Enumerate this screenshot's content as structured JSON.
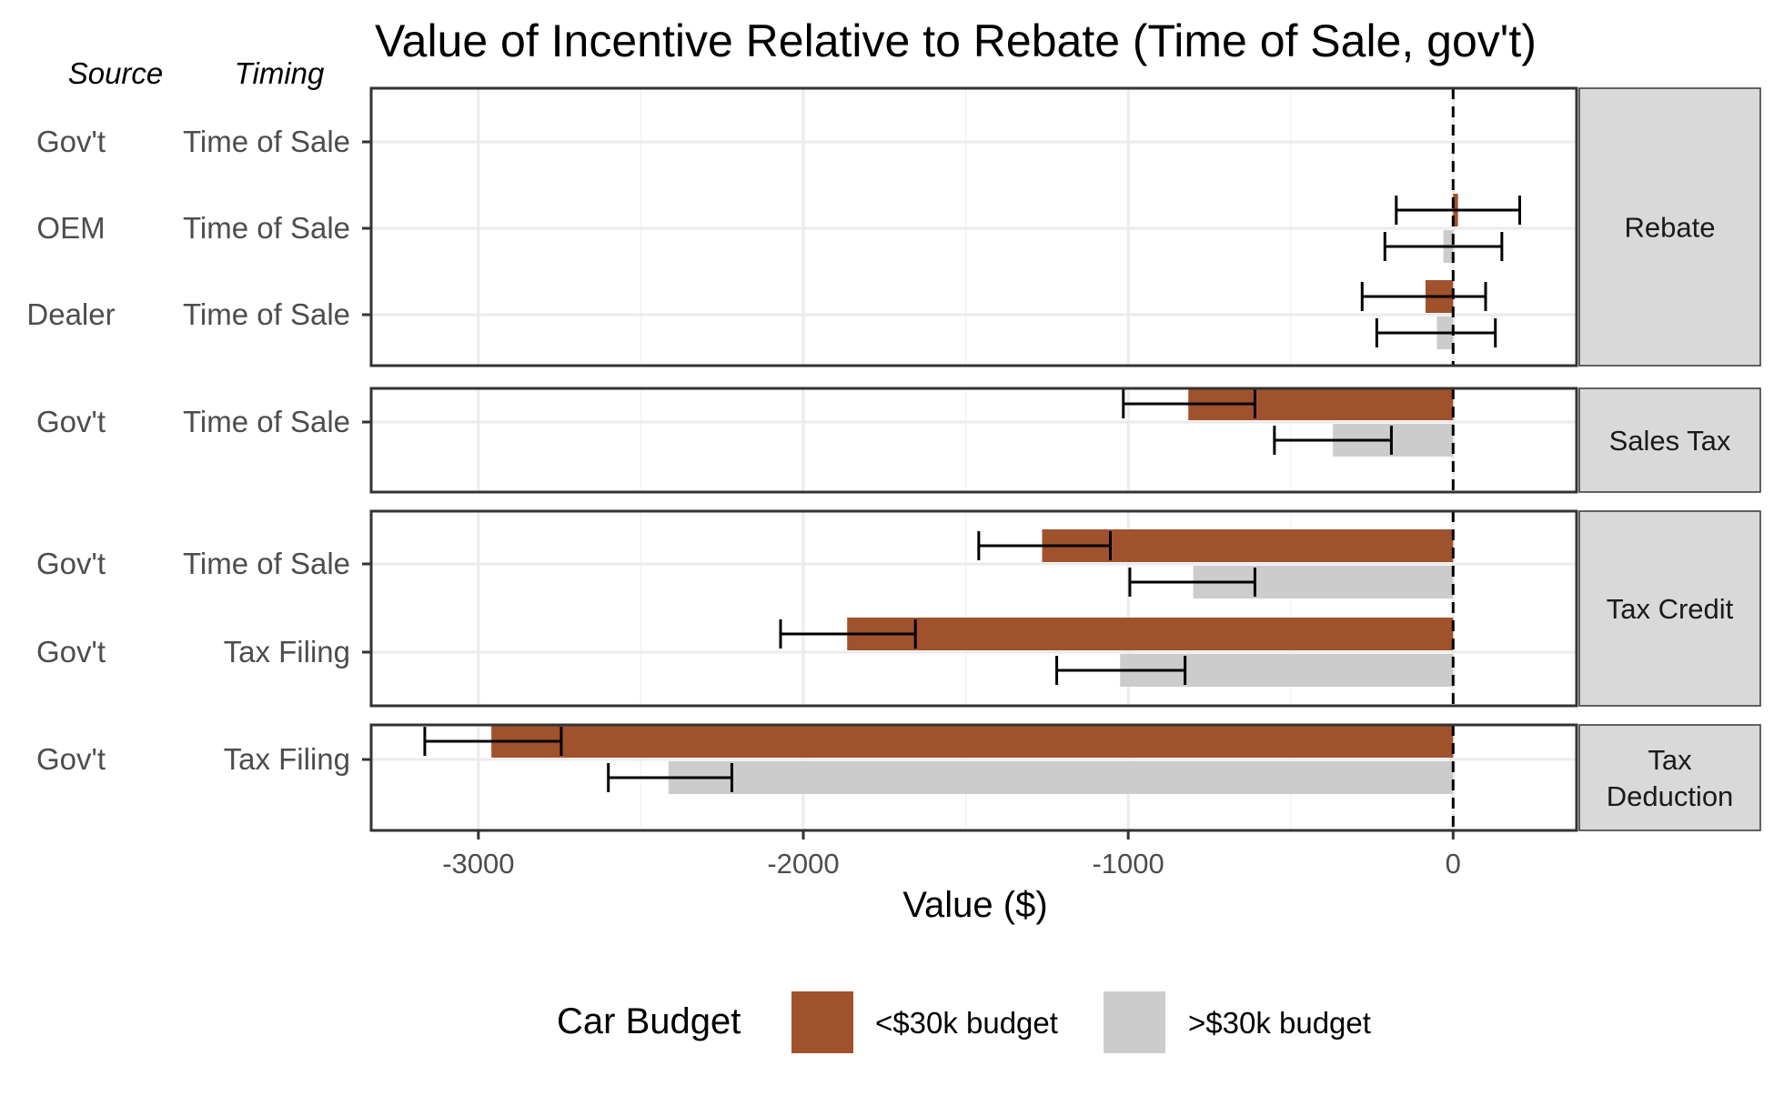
{
  "chart_data": {
    "type": "bar",
    "orientation": "horizontal",
    "title": "Value of Incentive Relative to Rebate (Time of Sale, gov't)",
    "xlabel": "Value ($)",
    "column_headers": [
      "Source",
      "Timing"
    ],
    "xlim": [
      -3330,
      380
    ],
    "x_ticks": [
      -3000,
      -2000,
      -1000,
      0
    ],
    "x_tick_labels": [
      "-3000",
      "-2000",
      "-1000",
      "0"
    ],
    "reference_line": 0,
    "grid": true,
    "legend": {
      "title": "Car Budget",
      "position": "bottom",
      "entries": [
        {
          "label": "<$30k budget",
          "color": "#A0522D"
        },
        {
          "label": ">$30k budget",
          "color": "#CCCCCC"
        }
      ]
    },
    "series": [
      {
        "name": "<$30k budget",
        "color": "#A0522D"
      },
      {
        "name": ">$30k budget",
        "color": "#CCCCCC"
      }
    ],
    "facets": [
      {
        "strip": [
          "Rebate"
        ],
        "rows": [
          {
            "source": "Gov't",
            "timing": "Time of Sale",
            "values": [
              null,
              null
            ],
            "ci": [
              null,
              null
            ]
          },
          {
            "source": "OEM",
            "timing": "Time of Sale",
            "values": [
              15,
              -30
            ],
            "ci": [
              [
                -175,
                205
              ],
              [
                -210,
                150
              ]
            ]
          },
          {
            "source": "Dealer",
            "timing": "Time of Sale",
            "values": [
              -85,
              -50
            ],
            "ci": [
              [
                -280,
                100
              ],
              [
                -235,
                130
              ]
            ]
          }
        ]
      },
      {
        "strip": [
          "Sales Tax"
        ],
        "rows": [
          {
            "source": "Gov't",
            "timing": "Time of Sale",
            "values": [
              -815,
              -370
            ],
            "ci": [
              [
                -1015,
                -610
              ],
              [
                -550,
                -190
              ]
            ]
          }
        ]
      },
      {
        "strip": [
          "Tax Credit"
        ],
        "rows": [
          {
            "source": "Gov't",
            "timing": "Time of Sale",
            "values": [
              -1265,
              -800
            ],
            "ci": [
              [
                -1460,
                -1055
              ],
              [
                -995,
                -610
              ]
            ]
          },
          {
            "source": "Gov't",
            "timing": "Tax Filing",
            "values": [
              -1865,
              -1025
            ],
            "ci": [
              [
                -2070,
                -1655
              ],
              [
                -1220,
                -825
              ]
            ]
          }
        ]
      },
      {
        "strip": [
          "Tax",
          "Deduction"
        ],
        "rows": [
          {
            "source": "Gov't",
            "timing": "Tax Filing",
            "values": [
              -2960,
              -2415
            ],
            "ci": [
              [
                -3165,
                -2745
              ],
              [
                -2600,
                -2220
              ]
            ]
          }
        ]
      }
    ]
  }
}
